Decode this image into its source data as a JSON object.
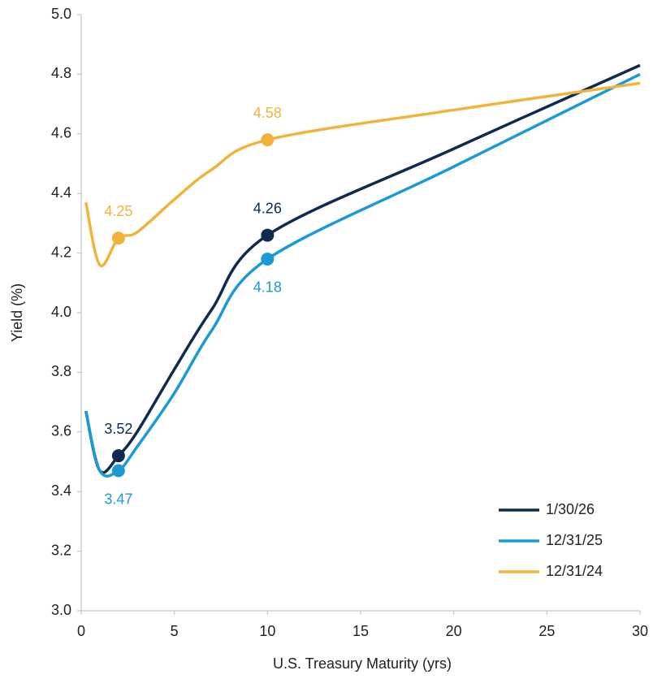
{
  "chart_data": {
    "type": "line",
    "xlabel": "U.S. Treasury Maturity (yrs)",
    "ylabel": "Yield (%)",
    "xlim": [
      0,
      30
    ],
    "xticks": [
      0,
      5,
      10,
      15,
      20,
      25,
      30
    ],
    "ylim": [
      3,
      5
    ],
    "yticks": [
      {
        "value": 3,
        "label": "3.0"
      },
      3.2,
      3.4,
      3.6,
      3.8,
      {
        "value": 4,
        "label": "4.0"
      },
      4.2,
      4.4,
      4.6,
      4.8,
      {
        "value": 5,
        "label": "5.0"
      }
    ],
    "grid": false,
    "legend": "lower right",
    "x": [
      0.25,
      1,
      2,
      3,
      5,
      7,
      10,
      20,
      30
    ],
    "marker_x": [
      2,
      10
    ],
    "series": [
      {
        "name": "1/30/26",
        "color": "#0e2a4e",
        "label_position": "above",
        "values": [
          3.67,
          3.47,
          3.52,
          3.6,
          3.81,
          4.01,
          4.26,
          4.55,
          4.83
        ]
      },
      {
        "name": "12/31/25",
        "color": "#1b9ad6",
        "label_position": "below",
        "values": [
          3.67,
          3.47,
          3.47,
          3.55,
          3.73,
          3.94,
          4.18,
          4.49,
          4.8
        ]
      },
      {
        "name": "12/31/24",
        "color": "#f0b43c",
        "label_position": "above",
        "values": [
          4.37,
          4.16,
          4.25,
          4.27,
          4.38,
          4.48,
          4.58,
          4.68,
          4.77
        ]
      }
    ]
  }
}
